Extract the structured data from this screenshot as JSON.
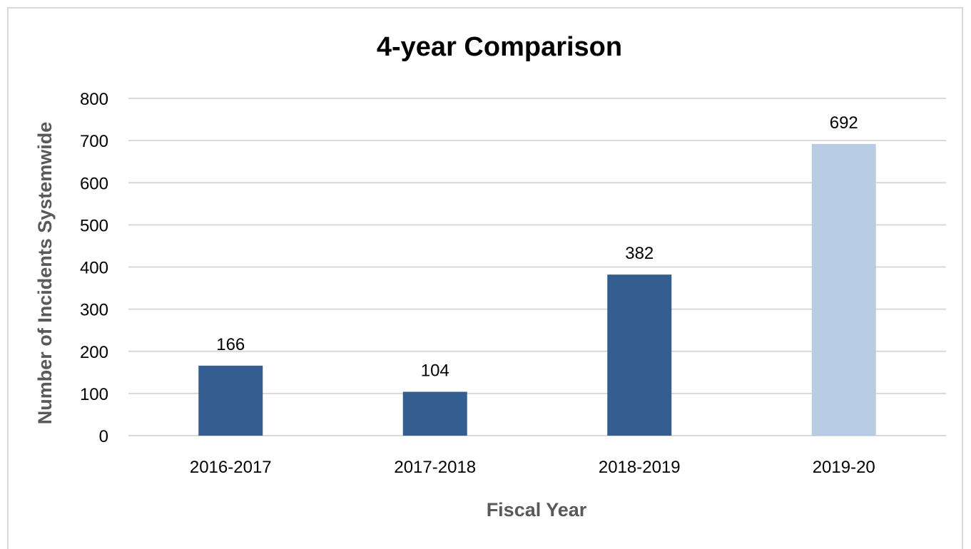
{
  "chart_data": {
    "type": "bar",
    "title": "4-year Comparison",
    "xlabel": "Fiscal Year",
    "ylabel": "Number of Incidents Systemwide",
    "categories": [
      "2016-2017",
      "2017-2018",
      "2018-2019",
      "2019-20"
    ],
    "values": [
      166,
      104,
      382,
      692
    ],
    "data_labels": [
      "166",
      "104",
      "382",
      "692"
    ],
    "bar_colors": [
      "#335e8f",
      "#335e8f",
      "#335e8f",
      "#b8cde4"
    ],
    "ylim": [
      0,
      800
    ],
    "yticks": [
      0,
      100,
      200,
      300,
      400,
      500,
      600,
      700,
      800
    ],
    "ytick_labels": [
      "0",
      "100",
      "200",
      "300",
      "400",
      "500",
      "600",
      "700",
      "800"
    ],
    "grid": true,
    "legend": "none"
  }
}
